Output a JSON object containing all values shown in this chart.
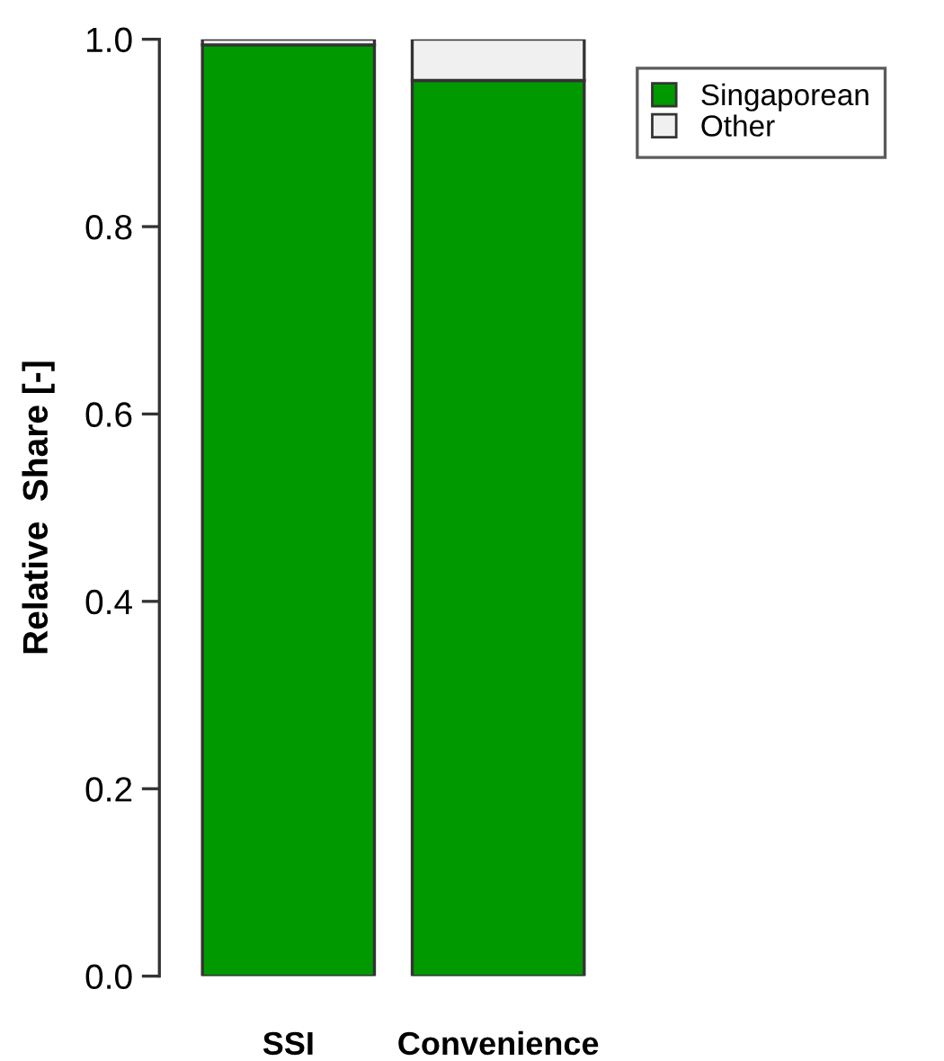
{
  "chart_data": {
    "type": "bar",
    "stacked": true,
    "ylabel": "Relative  Share [-]",
    "categories": [
      "SSI",
      "Convenience"
    ],
    "series": [
      {
        "name": "Singaporean",
        "color": "#009900",
        "values": [
          0.994,
          0.956
        ]
      },
      {
        "name": "Other",
        "color": "#f0f0f0",
        "values": [
          0.006,
          0.044
        ]
      }
    ],
    "ylim": [
      0,
      1
    ],
    "yticks": [
      {
        "value": 0,
        "label": "0.0"
      },
      0.2,
      0.4,
      0.6,
      0.8,
      {
        "value": 1,
        "label": "1.0"
      }
    ],
    "grid": false,
    "legend": "top right"
  }
}
